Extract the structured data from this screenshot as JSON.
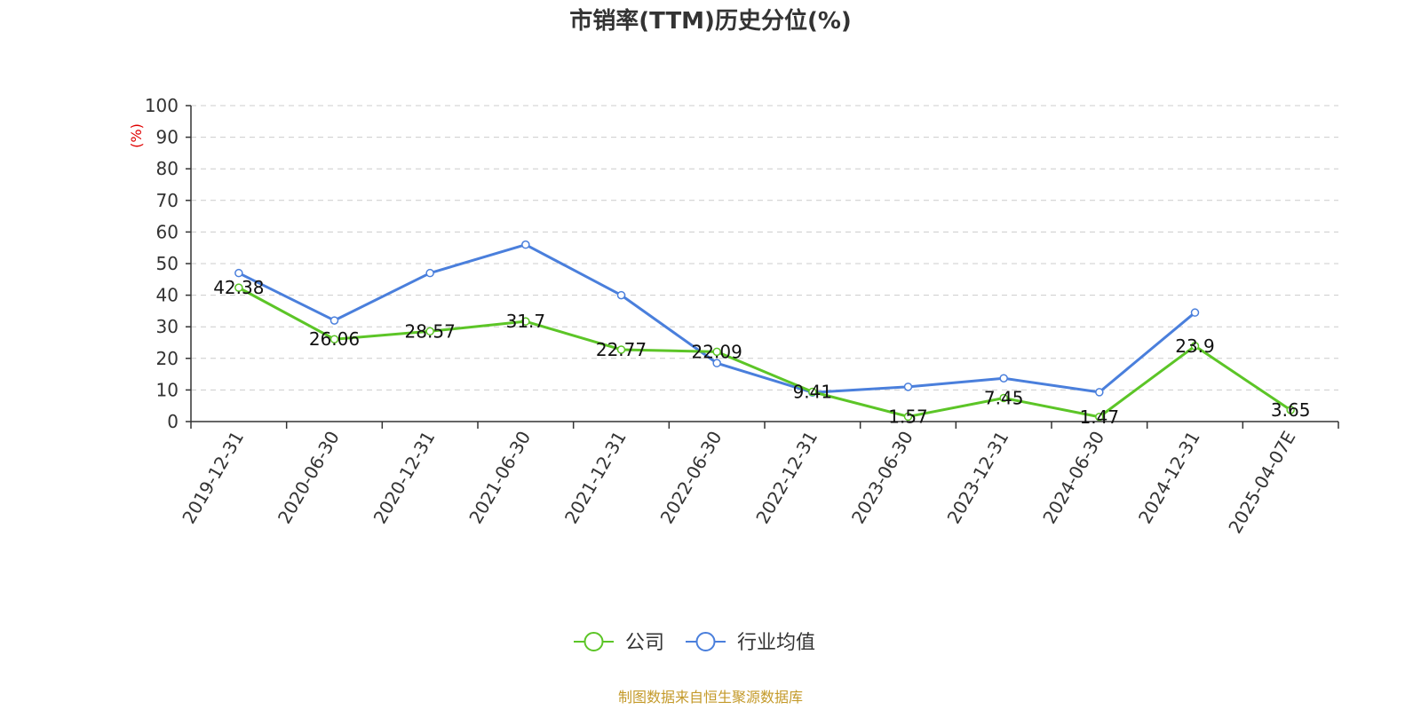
{
  "chart_data": {
    "type": "line",
    "title": "市销率(TTM)历史分位(%)",
    "ylabel": "(%)",
    "ylim": [
      0,
      100
    ],
    "yticks": [
      0,
      10,
      20,
      30,
      40,
      50,
      60,
      70,
      80,
      90,
      100
    ],
    "grid": true,
    "legend_position": "bottom-center",
    "categories": [
      "2019-12-31",
      "2020-06-30",
      "2020-12-31",
      "2021-06-30",
      "2021-12-31",
      "2022-06-30",
      "2022-12-31",
      "2023-06-30",
      "2023-12-31",
      "2024-06-30",
      "2024-12-31",
      "2025-04-07E"
    ],
    "series": [
      {
        "name": "公司",
        "color": "#5cc527",
        "values": [
          42.38,
          26.06,
          28.57,
          31.7,
          22.77,
          22.09,
          9.41,
          1.57,
          7.45,
          1.47,
          23.9,
          3.65
        ],
        "labels": [
          "42.38",
          "26.06",
          "28.57",
          "31.7",
          "22.77",
          "22.09",
          "9.41",
          "1.57",
          "7.45",
          "1.47",
          "23.9",
          "3.65"
        ]
      },
      {
        "name": "行业均值",
        "color": "#4a7fdc",
        "values": [
          47,
          32,
          47,
          56,
          40,
          18.5,
          9.2,
          11,
          13.7,
          9.3,
          34.5,
          null
        ]
      }
    ],
    "source": "制图数据来自恒生聚源数据库"
  },
  "colors": {
    "axis": "#333333",
    "grid": "#cccccc",
    "unit_label": "#e00000",
    "source_text": "#c49a2a"
  }
}
